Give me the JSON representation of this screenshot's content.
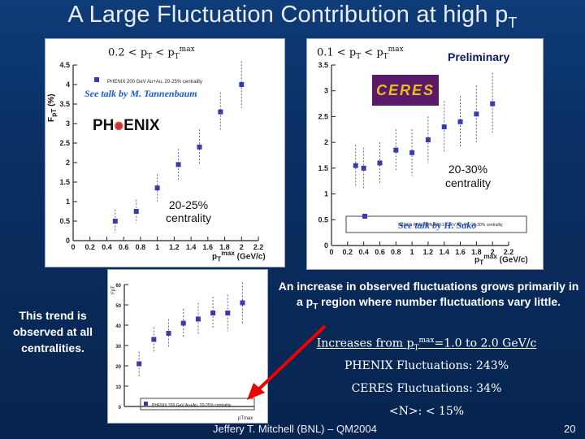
{
  "slide": {
    "title_main": "A Large Fluctuation Contribution at high p",
    "title_sub": "T",
    "preliminary": "Preliminary",
    "footer": "Jeffery T. Mitchell (BNL) – QM2004",
    "page_number": "20"
  },
  "left_panel": {
    "range_label": "0.2 < pT < pTmax",
    "ylabel": "FpT (%)",
    "xlabel": "pTmax (GeV/c)",
    "legend_text": "PHENIX 200 GeV Au+Au, 20-25% centrality",
    "see_talk": "See talk by M. Tannenbaum",
    "logo_text_a": "PH",
    "logo_text_b": "ENIX",
    "centrality": "20-25%\ncentrality"
  },
  "right_panel": {
    "range_label": "0.1 < pT < pTmax",
    "ylabel": "FpT (%)",
    "xlabel": "pTmax (GeV/c)",
    "legend_text": "CERES PRELIMINARY 17 GeV Pb+Pb, 20-30% centrality",
    "see_talk": "See talk by H. Sako",
    "centrality": "20-30%\ncentrality",
    "logo_text": "CERES"
  },
  "bottom_panel": {
    "legend_text": "PHENIX 200 GeV Au+Au, 20-25% centrality",
    "xlabel": "pTmax",
    "ylabel": "FpT"
  },
  "text": {
    "left_trend": "This trend is observed at all centralities.",
    "increase": "An increase in observed fluctuations grows primarily in a pT region where number fluctuations vary little.",
    "increases_from": "Increases from pTmax=1.0 to 2.0 GeV/c",
    "phenix_fluct": "PHENIX Fluctuations: 243%",
    "ceres_fluct": "CERES Fluctuations: 34%",
    "n_fluct": "<N>: < 15%"
  },
  "chart_data": [
    {
      "type": "scatter",
      "name": "left",
      "xlim": [
        0,
        2.2
      ],
      "ylim": [
        0,
        4.5
      ],
      "xticks": [
        "0",
        "0.2",
        "0.4",
        "0.6",
        "0.8",
        "1",
        "1.2",
        "1.4",
        "1.6",
        "1.8",
        "2",
        "2.2"
      ],
      "yticks": [
        "0",
        "0.5",
        "1",
        "1.5",
        "2",
        "2.5",
        "3",
        "3.5",
        "4",
        "4.5"
      ],
      "x": [
        0.5,
        0.75,
        1.0,
        1.25,
        1.5,
        1.75,
        2.0
      ],
      "y": [
        0.5,
        0.75,
        1.35,
        1.95,
        2.4,
        3.3,
        4.0
      ],
      "err": [
        0.3,
        0.3,
        0.35,
        0.4,
        0.45,
        0.5,
        0.6
      ]
    },
    {
      "type": "scatter",
      "name": "right",
      "xlim": [
        0,
        2.2
      ],
      "ylim": [
        0,
        3.5
      ],
      "xticks": [
        "0",
        "0.2",
        "0.4",
        "0.6",
        "0.8",
        "1",
        "1.2",
        "1.4",
        "1.6",
        "1.8",
        "2",
        "2.2"
      ],
      "yticks": [
        "0",
        "0.5",
        "1",
        "1.5",
        "2",
        "2.5",
        "3",
        "3.5"
      ],
      "x": [
        0.3,
        0.4,
        0.6,
        0.8,
        1.0,
        1.2,
        1.4,
        1.6,
        1.8,
        2.0
      ],
      "y": [
        1.55,
        1.5,
        1.6,
        1.85,
        1.8,
        2.05,
        2.3,
        2.4,
        2.55,
        2.75
      ],
      "err": [
        0.4,
        0.4,
        0.4,
        0.4,
        0.45,
        0.45,
        0.5,
        0.5,
        0.55,
        0.6
      ]
    },
    {
      "type": "scatter",
      "name": "bottom",
      "xlim": [
        0,
        2.2
      ],
      "ylim": [
        0,
        60
      ],
      "yticks": [
        "0",
        "10",
        "20",
        "30",
        "40",
        "50",
        "60"
      ],
      "x": [
        0.25,
        0.5,
        0.75,
        1.0,
        1.25,
        1.5,
        1.75,
        2.0
      ],
      "y": [
        21,
        33,
        36,
        41,
        43,
        46,
        46,
        51
      ],
      "err": [
        6,
        6,
        7,
        7,
        8,
        8,
        9,
        10
      ]
    }
  ]
}
